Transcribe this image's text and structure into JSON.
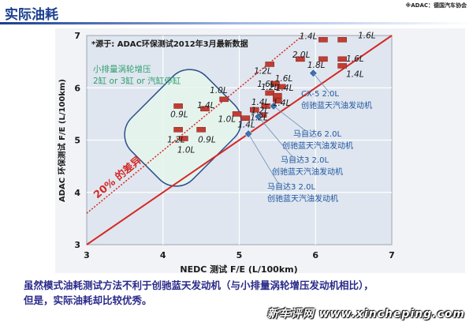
{
  "header": {
    "title": "实际油耗",
    "source_top": "※ADAC：德国汽车协会"
  },
  "caption": {
    "line1": "虽然模式油耗测试方法不利于创驰蓝天发动机（与小排量涡轮增压发动机相比），",
    "line2": "但是，实际油耗却比较优秀。"
  },
  "watermark": "新车评网 www.xincheping.com",
  "colors": {
    "background": "#f2f3f6",
    "plot_area": "#dfe6ef",
    "grid": "#ffffff",
    "diagonal": "#d42a25",
    "marker": "#c23d33",
    "skyactiv_marker": "#3b6ea8",
    "callout_text": "#1f56a0",
    "highlight_fill": "#e6f4ec",
    "highlight_border": "#2b4f8a",
    "highlight_text": "#2f9e6e"
  },
  "chart_data": {
    "type": "scatter",
    "title": "",
    "xlabel": "NEDC 测试 F/E (L/100km)",
    "ylabel": "ADAC 环保测试 F/E (L/100km)",
    "xlim": [
      3,
      7
    ],
    "ylim": [
      3,
      7
    ],
    "x_ticks": [
      3,
      4,
      5,
      6,
      7
    ],
    "y_ticks": [
      3,
      4,
      5,
      6,
      7
    ],
    "grid": true,
    "source_note": "*源于: ADAC环保测试2012年3月最新数据",
    "diff_label": "20% 的差异",
    "highlight_group": {
      "line1": "小排量涡轮增压",
      "line2": "2缸 or 3缸 or 汽缸停缸"
    },
    "series": [
      {
        "name": "小排量涡轮增压",
        "points": [
          {
            "x": 4.2,
            "y": 5.65,
            "label": "0.9L"
          },
          {
            "x": 4.55,
            "y": 5.6,
            "label": "1.4L"
          },
          {
            "x": 4.8,
            "y": 5.78,
            "label": "1.0L"
          },
          {
            "x": 4.2,
            "y": 5.2,
            "label": "1.2L"
          },
          {
            "x": 4.5,
            "y": 5.2,
            "label": "0.9L"
          },
          {
            "x": 4.27,
            "y": 5.03,
            "label": "1.0L"
          },
          {
            "x": 4.97,
            "y": 5.5,
            "label": "1.0L"
          },
          {
            "x": 5.08,
            "y": 5.42,
            "label": "1.4L"
          },
          {
            "x": 5.2,
            "y": 5.58,
            "label": "1.4L"
          },
          {
            "x": 5.35,
            "y": 5.65,
            "label": "1.2L"
          },
          {
            "x": 5.3,
            "y": 5.48,
            "label": "1.2L"
          },
          {
            "x": 5.4,
            "y": 5.9,
            "label": "1.6L"
          },
          {
            "x": 5.5,
            "y": 5.85,
            "label": "1.4L"
          },
          {
            "x": 5.5,
            "y": 5.75,
            "label": "1.4L"
          },
          {
            "x": 5.47,
            "y": 6.08,
            "label": "1.2L"
          },
          {
            "x": 5.55,
            "y": 6.02,
            "label": "1.6L"
          },
          {
            "x": 5.4,
            "y": 6.45,
            "label": "1.2L"
          },
          {
            "x": 5.8,
            "y": 6.55,
            "label": "2.0L"
          },
          {
            "x": 6.1,
            "y": 6.92,
            "label": "1.4L"
          },
          {
            "x": 6.35,
            "y": 6.92,
            "label": "1.6L"
          },
          {
            "x": 6.1,
            "y": 6.55,
            "label": "1.8L"
          },
          {
            "x": 6.35,
            "y": 6.55,
            "label": "1.6L"
          },
          {
            "x": 6.35,
            "y": 6.42,
            "label": "1.4L"
          }
        ]
      },
      {
        "name": "创驰蓝天汽油发动机",
        "points": [
          {
            "x": 5.12,
            "y": 5.12,
            "label": "马自达3 2.0L 创驰蓝天汽油发动机"
          },
          {
            "x": 5.25,
            "y": 5.45,
            "label": "马自达3 2.0L 创驰蓝天汽油发动机"
          },
          {
            "x": 5.45,
            "y": 5.65,
            "label": "马自达6 2.0L 创驰蓝天汽油发动机"
          },
          {
            "x": 5.97,
            "y": 6.28,
            "label": "CX-5 2.0L 创驰蓝天汽油发动机"
          }
        ]
      }
    ],
    "callouts": [
      {
        "line1": "CX-5 2.0L",
        "line2": "创驰蓝天汽油发动机"
      },
      {
        "line1": "马自达6 2.0L",
        "line2": "创驰蓝天汽油发动机"
      },
      {
        "line1": "马自达3 2.0L",
        "line2": "创驰蓝天汽油发动机"
      },
      {
        "line1": "马自达3 2.0L",
        "line2": "创驰蓝天汽油发动机"
      }
    ]
  }
}
